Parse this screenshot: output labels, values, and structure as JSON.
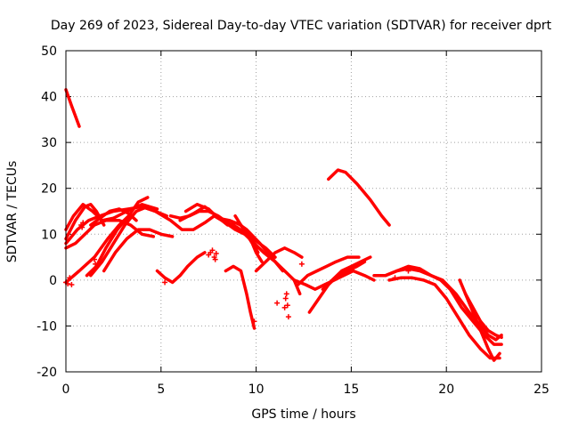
{
  "chart_data": {
    "type": "scatter",
    "title": "Day 269 of 2023, Sidereal Day-to-day VTEC variation (SDTVAR) for receiver dprt",
    "xlabel": "GPS time / hours",
    "ylabel": "SDTVAR / TECUs",
    "xlim": [
      0,
      25
    ],
    "ylim": [
      -20,
      50
    ],
    "xticks": [
      "0",
      "5",
      "10",
      "15",
      "20",
      "25"
    ],
    "yticks": [
      "-20",
      "-10",
      "0",
      "10",
      "20",
      "30",
      "40",
      "50"
    ],
    "grid": true,
    "marker": "+",
    "color": "#ff0000",
    "series": [
      {
        "name": "s1",
        "x": [
          0.0,
          0.3,
          0.7
        ],
        "y": [
          41.5,
          38,
          33.5
        ]
      },
      {
        "name": "s2",
        "x": [
          0.0,
          0.5,
          1.0,
          1.3,
          1.6,
          2.0
        ],
        "y": [
          9,
          13,
          16,
          16.5,
          15,
          12
        ]
      },
      {
        "name": "s3",
        "x": [
          0.0,
          0.6,
          1.2,
          1.8,
          2.5,
          3.3,
          4.0,
          4.7,
          5.3
        ],
        "y": [
          8,
          11,
          13,
          14,
          15,
          15.5,
          16,
          15,
          14
        ]
      },
      {
        "name": "s4",
        "x": [
          0.0,
          0.4,
          0.9,
          1.4,
          1.9,
          2.5,
          3.2,
          4.0,
          4.8
        ],
        "y": [
          11,
          14,
          16.5,
          15,
          13,
          13.5,
          15,
          16.5,
          15.5
        ]
      },
      {
        "name": "s5",
        "x": [
          1.3,
          1.8,
          2.3,
          2.8,
          3.3,
          3.7
        ],
        "y": [
          12,
          13.5,
          15,
          15.5,
          14.5,
          13
        ]
      },
      {
        "name": "s6",
        "x": [
          0.0,
          0.5,
          1.0,
          1.5,
          2.1,
          2.8,
          3.4,
          4.0,
          4.6
        ],
        "y": [
          7,
          8,
          10,
          12,
          13,
          13,
          12,
          10,
          9.5
        ]
      },
      {
        "name": "s7",
        "x": [
          1.1,
          1.6,
          2.1,
          2.7,
          3.3,
          3.8,
          4.3
        ],
        "y": [
          1,
          3,
          7,
          11,
          14,
          17,
          18
        ]
      },
      {
        "name": "s8",
        "x": [
          1.3,
          1.9,
          2.5,
          3.1,
          3.7,
          4.3
        ],
        "y": [
          1,
          4,
          8,
          12,
          15,
          16
        ]
      },
      {
        "name": "s9",
        "x": [
          2.0,
          2.6,
          3.2,
          3.8,
          4.4,
          5.0,
          5.6
        ],
        "y": [
          2,
          6,
          9,
          11,
          11,
          10,
          9.5
        ]
      },
      {
        "name": "s10",
        "x": [
          0.0,
          0.7,
          1.5,
          2.2,
          2.8,
          3.3
        ],
        "y": [
          -0.5,
          2,
          5,
          9,
          12,
          14
        ]
      },
      {
        "name": "s11",
        "x": [
          4.0,
          4.7,
          5.5,
          6.1,
          6.7,
          7.3,
          7.8,
          8.4,
          8.9,
          9.4,
          9.9,
          10.4,
          11.0,
          11.5,
          12.0,
          12.3
        ],
        "y": [
          16,
          15,
          13,
          11,
          11,
          12.5,
          14,
          12.5,
          11,
          10,
          8,
          6,
          4,
          2,
          0,
          -3
        ]
      },
      {
        "name": "s12",
        "x": [
          5.5,
          6.0,
          6.5,
          7.0,
          7.5,
          8.0,
          8.5,
          9.0,
          9.5,
          10.0,
          10.5,
          11.0
        ],
        "y": [
          14,
          13.5,
          14,
          15,
          15,
          14,
          12.5,
          11.5,
          10,
          8.5,
          7,
          5
        ]
      },
      {
        "name": "s13",
        "x": [
          6.3,
          6.9,
          7.5,
          8.0,
          8.6,
          9.2,
          9.7,
          10.1
        ],
        "y": [
          15,
          16.5,
          15.5,
          13.5,
          13,
          12,
          9,
          6
        ]
      },
      {
        "name": "s14",
        "x": [
          6.0,
          6.7,
          7.3,
          7.9,
          8.5,
          9.0,
          9.5,
          10.2,
          10.8,
          11.4
        ],
        "y": [
          13,
          14.5,
          16,
          14,
          12,
          12.5,
          11,
          8,
          5,
          2
        ]
      },
      {
        "name": "s15",
        "x": [
          4.8,
          5.2,
          5.6,
          6.0,
          6.4,
          6.9,
          7.3
        ],
        "y": [
          2,
          0.5,
          -0.5,
          1,
          3,
          5,
          6
        ]
      },
      {
        "name": "s16",
        "x": [
          8.4,
          8.8,
          9.2,
          9.5,
          9.7,
          9.9
        ],
        "y": [
          2,
          3,
          2,
          -3,
          -7,
          -10.5
        ]
      },
      {
        "name": "s17",
        "x": [
          8.9,
          9.2,
          9.5,
          9.8,
          10.0,
          10.3
        ],
        "y": [
          14,
          12,
          10,
          8,
          6,
          4
        ]
      },
      {
        "name": "s18",
        "x": [
          10.0,
          10.5,
          11.0,
          11.5,
          12.0,
          12.4
        ],
        "y": [
          2,
          4,
          6,
          7,
          6,
          5
        ]
      },
      {
        "name": "s19",
        "x": [
          12.2,
          12.7,
          13.2,
          13.7,
          14.2,
          14.8,
          15.4
        ],
        "y": [
          -1,
          1,
          2,
          3,
          4,
          5,
          5
        ]
      },
      {
        "name": "s20",
        "x": [
          12.8,
          13.3,
          13.8,
          14.3,
          14.8,
          15.3,
          15.7
        ],
        "y": [
          -7,
          -4,
          -1,
          1,
          2,
          3,
          4
        ]
      },
      {
        "name": "s21",
        "x": [
          13.5,
          14.0,
          14.5,
          15.0,
          15.5,
          16.0
        ],
        "y": [
          -2,
          0,
          2,
          3,
          4,
          5
        ]
      },
      {
        "name": "s22",
        "x": [
          12.0,
          12.6,
          13.1,
          13.6,
          14.1,
          14.6,
          15.1,
          15.7,
          16.2
        ],
        "y": [
          0,
          -1,
          -2,
          -1,
          0,
          1,
          2,
          1,
          0
        ]
      },
      {
        "name": "s23",
        "x": [
          13.8,
          14.3,
          14.7,
          15.3,
          16.0,
          16.6,
          17.0
        ],
        "y": [
          22,
          24,
          23.5,
          21,
          17.5,
          14,
          12
        ]
      },
      {
        "name": "s24",
        "x": [
          16.2,
          16.8,
          17.4,
          18.0,
          18.6,
          19.2,
          19.8,
          20.5,
          21.2,
          21.8,
          22.2,
          22.6,
          22.9
        ],
        "y": [
          1,
          1,
          2,
          2.5,
          2,
          1,
          0,
          -3,
          -7,
          -10,
          -12,
          -13,
          -12
        ]
      },
      {
        "name": "s25",
        "x": [
          16.8,
          17.4,
          18.0,
          18.6,
          19.2,
          19.7,
          20.2,
          20.8,
          21.4,
          22.0,
          22.5,
          22.9
        ],
        "y": [
          1,
          2,
          3,
          2.5,
          1,
          0,
          -2,
          -6,
          -9,
          -12,
          -14,
          -14
        ]
      },
      {
        "name": "s26",
        "x": [
          17.0,
          17.6,
          18.2,
          18.8,
          19.4,
          20.0,
          20.6,
          21.2,
          21.8,
          22.3,
          22.8
        ],
        "y": [
          0,
          0.5,
          0.5,
          0,
          -1,
          -4,
          -8,
          -12,
          -15,
          -17,
          -17
        ]
      },
      {
        "name": "s27",
        "x": [
          20.7,
          21.0,
          21.3,
          21.6,
          21.9,
          22.2,
          22.5,
          22.8
        ],
        "y": [
          0,
          -3,
          -6,
          -9,
          -12,
          -15,
          -17.5,
          -16
        ]
      },
      {
        "name": "s28",
        "x": [
          21.0,
          21.4,
          21.8,
          22.2,
          22.6,
          22.9
        ],
        "y": [
          -3,
          -6,
          -9,
          -11,
          -12,
          -12.5
        ]
      }
    ],
    "scattered_points": {
      "x": [
        0.0,
        0.1,
        0.2,
        0.3,
        0.8,
        0.85,
        0.9,
        1.5,
        1.55,
        5.2,
        7.5,
        7.6,
        7.7,
        7.8,
        7.85,
        7.9,
        9.9,
        11.1,
        11.5,
        11.55,
        11.6,
        11.65,
        11.7,
        12.4,
        17.3,
        18.0
      ],
      "y": [
        -0.5,
        -0.8,
        0.5,
        -1.0,
        12.0,
        11.5,
        12.5,
        4.5,
        3.5,
        -0.5,
        5.5,
        6.0,
        6.5,
        5.0,
        4.5,
        5.8,
        -9.0,
        -5.0,
        -6.0,
        -4.0,
        -3.0,
        -5.5,
        -8.0,
        3.5,
        0.5,
        2.0
      ]
    }
  }
}
